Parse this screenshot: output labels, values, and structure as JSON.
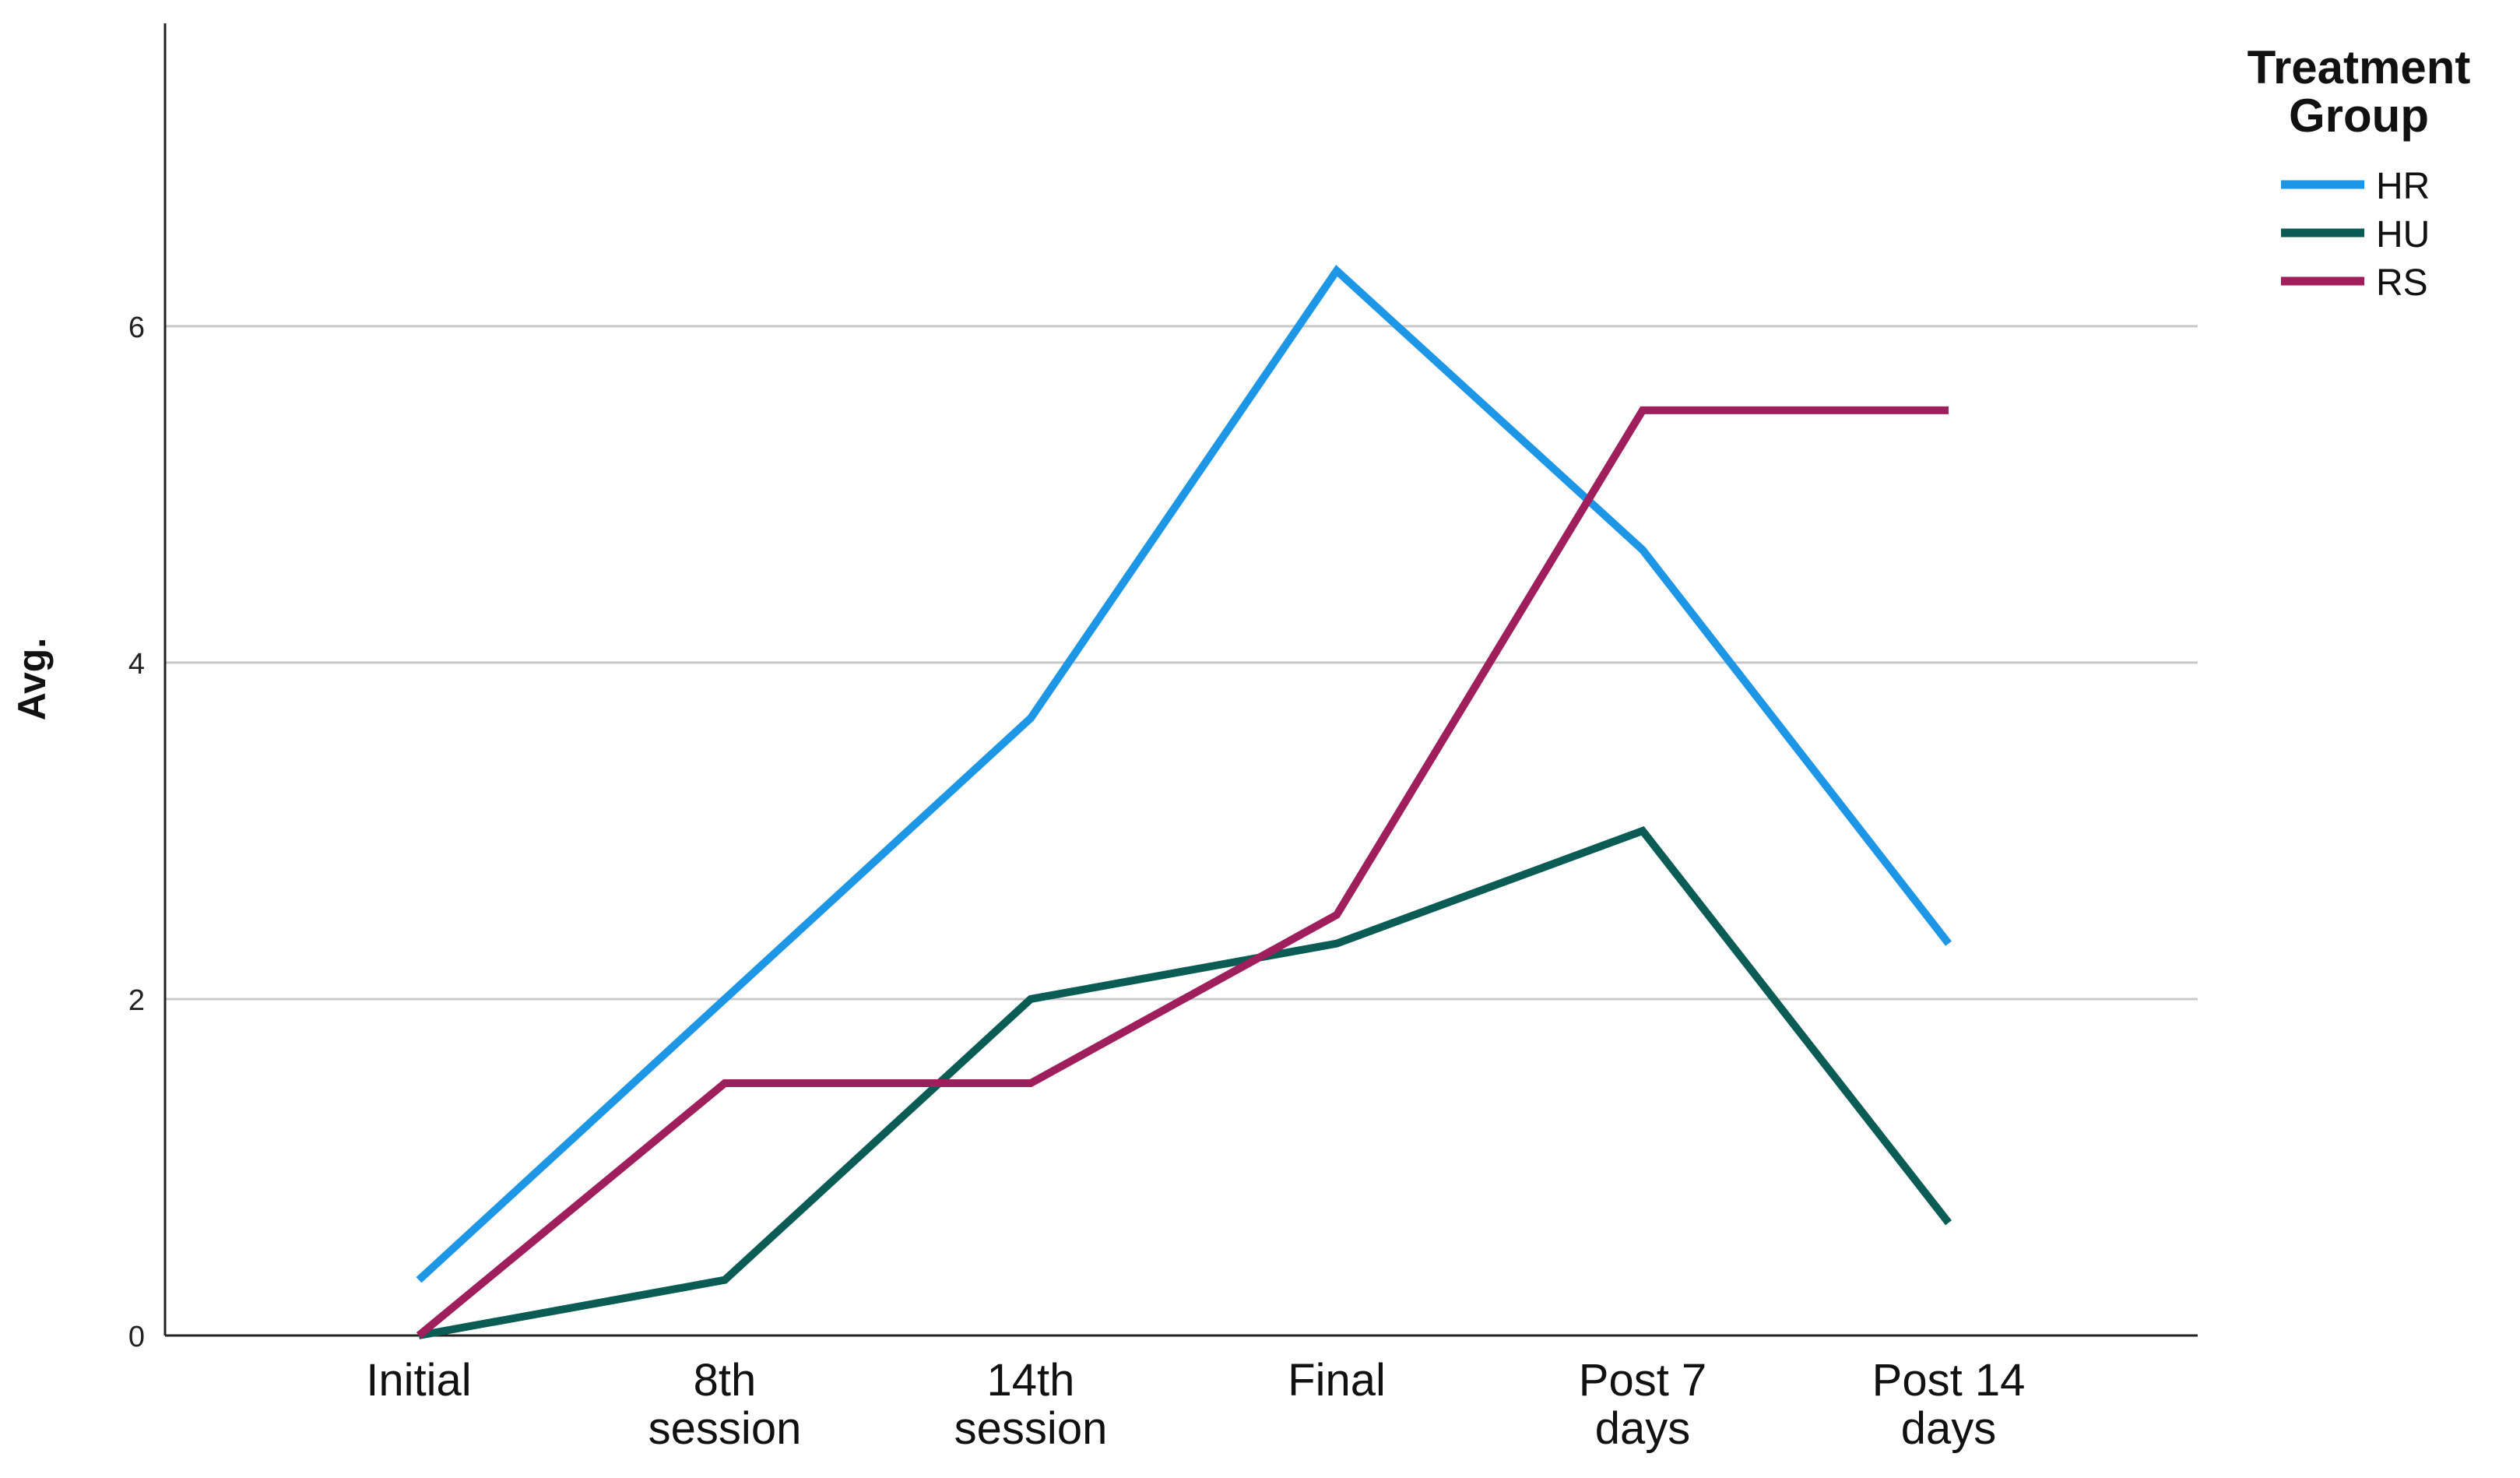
{
  "chart_data": {
    "type": "line",
    "title": "",
    "xlabel": "",
    "ylabel": "Avg.",
    "categories": [
      [
        "Initial"
      ],
      [
        "8th",
        "session"
      ],
      [
        "14th",
        "session"
      ],
      [
        "Final"
      ],
      [
        "Post 7",
        "days"
      ],
      [
        "Post 14",
        "days"
      ]
    ],
    "ylim": [
      0,
      7.8
    ],
    "yticks": [
      0,
      2,
      4,
      6
    ],
    "grid": "horizontal",
    "legend": {
      "title": [
        "Treatment",
        "Group"
      ],
      "placement": "top-right"
    },
    "series": [
      {
        "name": "HR",
        "color": "#1E96E6",
        "values": [
          0.33,
          2.0,
          3.67,
          6.33,
          4.67,
          2.33
        ]
      },
      {
        "name": "HU",
        "color": "#0B5C54",
        "values": [
          0.0,
          0.33,
          2.0,
          2.33,
          3.0,
          0.67
        ]
      },
      {
        "name": "RS",
        "color": "#9E1F5C",
        "values": [
          0.0,
          1.5,
          1.5,
          2.5,
          5.5,
          5.5
        ]
      }
    ]
  }
}
